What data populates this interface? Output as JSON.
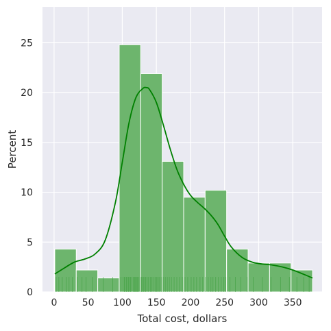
{
  "chart_data": {
    "type": "bar",
    "subtype": "histogram with KDE and rug",
    "xlabel": "Total cost, dollars",
    "ylabel": "Percent",
    "xlim": [
      -17,
      393
    ],
    "ylim": [
      0,
      28.6
    ],
    "xticks": [
      0,
      50,
      100,
      150,
      200,
      250,
      300,
      350
    ],
    "yticks": [
      0,
      5,
      10,
      15,
      20,
      25
    ],
    "grid": true,
    "legend": "none",
    "bins": [
      {
        "x0": 1,
        "x1": 32.5,
        "value": 4.3
      },
      {
        "x0": 32.5,
        "x1": 64,
        "value": 2.2
      },
      {
        "x0": 64,
        "x1": 95.5,
        "value": 1.4
      },
      {
        "x0": 95.5,
        "x1": 127,
        "value": 24.8
      },
      {
        "x0": 127,
        "x1": 158.5,
        "value": 21.9
      },
      {
        "x0": 158.5,
        "x1": 190,
        "value": 13.1
      },
      {
        "x0": 190,
        "x1": 221.5,
        "value": 9.5
      },
      {
        "x0": 221.5,
        "x1": 253,
        "value": 10.2
      },
      {
        "x0": 253,
        "x1": 284.5,
        "value": 4.3
      },
      {
        "x0": 284.5,
        "x1": 316,
        "value": 2.9
      },
      {
        "x0": 316,
        "x1": 347.5,
        "value": 2.9
      },
      {
        "x0": 347.5,
        "x1": 379,
        "value": 2.2
      }
    ],
    "kde": {
      "x": [
        1,
        15,
        30,
        45,
        60,
        75,
        90,
        100,
        110,
        120,
        130,
        135,
        140,
        150,
        160,
        170,
        180,
        190,
        200,
        210,
        220,
        230,
        240,
        250,
        260,
        275,
        290,
        305,
        320,
        335,
        350,
        365,
        379
      ],
      "y": [
        1.8,
        2.4,
        3.0,
        3.3,
        3.8,
        5.2,
        9.0,
        13.0,
        17.0,
        19.5,
        20.4,
        20.5,
        20.3,
        19.0,
        16.8,
        14.4,
        12.3,
        10.8,
        9.7,
        9.0,
        8.4,
        7.7,
        6.8,
        5.6,
        4.5,
        3.5,
        3.0,
        2.8,
        2.7,
        2.5,
        2.2,
        1.8,
        1.4
      ]
    },
    "rug": [
      3,
      7,
      12,
      18,
      22,
      27,
      34,
      41,
      47,
      56,
      72,
      86,
      98,
      101,
      103,
      104,
      106,
      107,
      109,
      111,
      112,
      114,
      116,
      118,
      119,
      121,
      122,
      124,
      126,
      128,
      129,
      131,
      133,
      134,
      136,
      138,
      141,
      143,
      145,
      148,
      150,
      152,
      154,
      157,
      160,
      163,
      166,
      169,
      172,
      176,
      180,
      184,
      188,
      192,
      196,
      201,
      205,
      209,
      214,
      218,
      222,
      226,
      230,
      233,
      237,
      241,
      245,
      249,
      252,
      258,
      266,
      274,
      283,
      292,
      305,
      318,
      332,
      345,
      356,
      366,
      374
    ],
    "colors": {
      "background": "#eaeaf2",
      "grid": "#ffffff",
      "bar_fill": "#6db56d",
      "bar_edge": "#ffffff",
      "kde_line": "#008000",
      "rug": "#339933"
    }
  }
}
